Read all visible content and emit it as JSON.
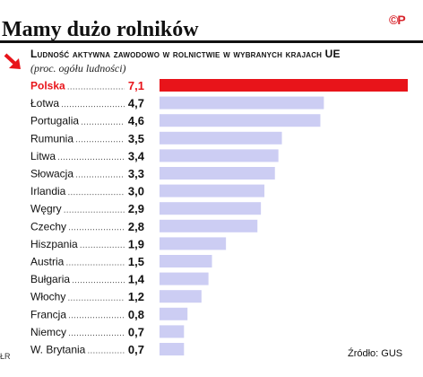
{
  "title": "Mamy dużo rolników",
  "logo": "©P",
  "credit": "ŁR",
  "source": "Źródło: GUS",
  "colors": {
    "highlight": "#e8141a",
    "bar": "#cccdf3",
    "logo": "#d8262e",
    "arrow": "#e8141a"
  },
  "icons": {
    "arrow": "arrow-down-right-icon"
  },
  "chart_data": {
    "type": "bar",
    "orientation": "horizontal",
    "title": "Ludność aktywna zawodowo w rolnictwie w wybranych krajach UE",
    "unit": "(proc. ogółu ludności)",
    "categories": [
      "Polska",
      "Łotwa",
      "Portugalia",
      "Rumunia",
      "Litwa",
      "Słowacja",
      "Irlandia",
      "Węgry",
      "Czechy",
      "Hiszpania",
      "Austria",
      "Bułgaria",
      "Włochy",
      "Francja",
      "Niemcy",
      "W. Brytania"
    ],
    "values": [
      7.1,
      4.7,
      4.6,
      3.5,
      3.4,
      3.3,
      3.0,
      2.9,
      2.8,
      1.9,
      1.5,
      1.4,
      1.2,
      0.8,
      0.7,
      0.7
    ],
    "value_labels": [
      "7,1",
      "4,7",
      "4,6",
      "3,5",
      "3,4",
      "3,3",
      "3,0",
      "2,9",
      "2,8",
      "1,9",
      "1,5",
      "1,4",
      "1,2",
      "0,8",
      "0,7",
      "0,7"
    ],
    "highlighted": "Polska",
    "xlim": [
      0,
      7.1
    ],
    "grid": false,
    "legend": "none"
  }
}
